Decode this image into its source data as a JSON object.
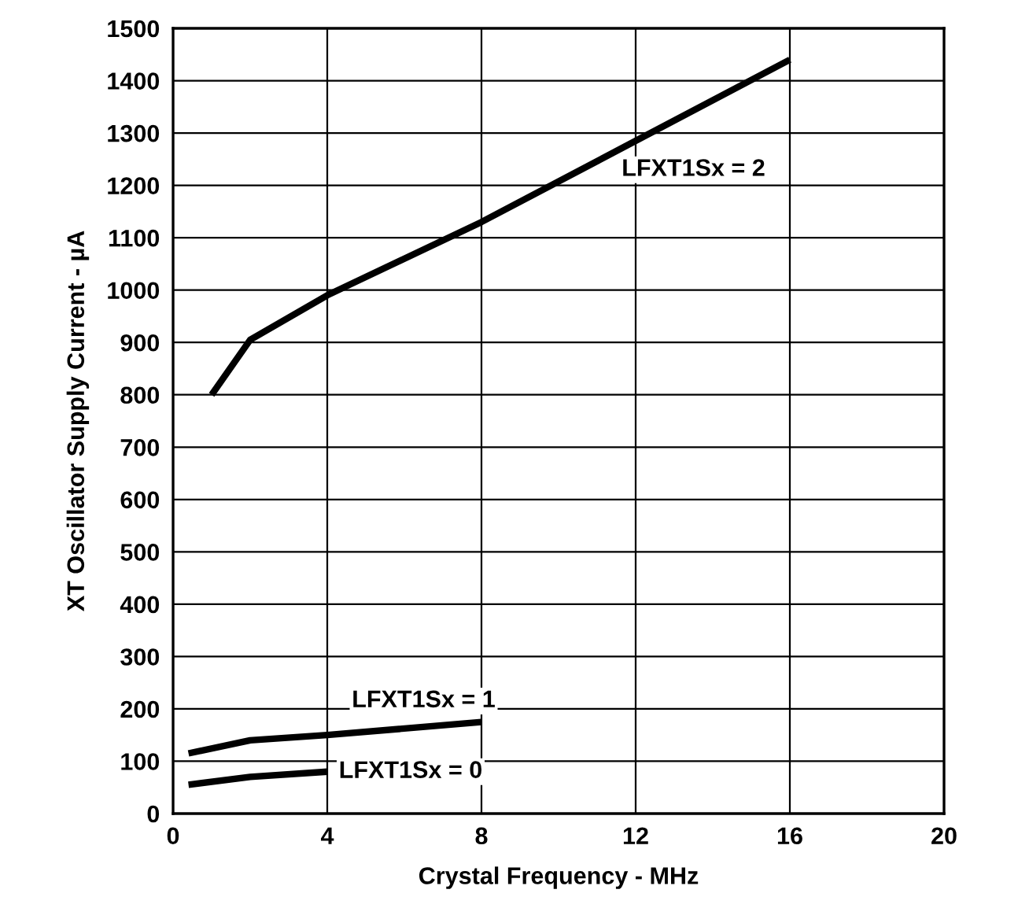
{
  "chart_data": {
    "type": "line",
    "xlabel": "Crystal Frequency - MHz",
    "ylabel": "XT Oscillator Supply Current - µA",
    "xlim": [
      0,
      20
    ],
    "xticks": [
      0,
      4,
      8,
      12,
      16,
      20
    ],
    "ylim": [
      0,
      1500
    ],
    "yticks": [
      0,
      100,
      200,
      300,
      400,
      500,
      600,
      700,
      800,
      900,
      1000,
      1100,
      1200,
      1300,
      1400,
      1500
    ],
    "grid": true,
    "marker": "none",
    "line_style": "solid",
    "series": [
      {
        "name": "LFXT1Sx = 2",
        "color": "#000000",
        "x": [
          1,
          2,
          4,
          8,
          12,
          16
        ],
        "values": [
          800,
          905,
          990,
          1130,
          1285,
          1440
        ]
      },
      {
        "name": "LFXT1Sx = 1",
        "color": "#000000",
        "x": [
          0.4,
          2,
          4,
          8
        ],
        "values": [
          115,
          140,
          150,
          175
        ]
      },
      {
        "name": "LFXT1Sx = 0",
        "color": "#000000",
        "x": [
          0.4,
          2,
          4
        ],
        "values": [
          55,
          70,
          80
        ]
      }
    ]
  }
}
